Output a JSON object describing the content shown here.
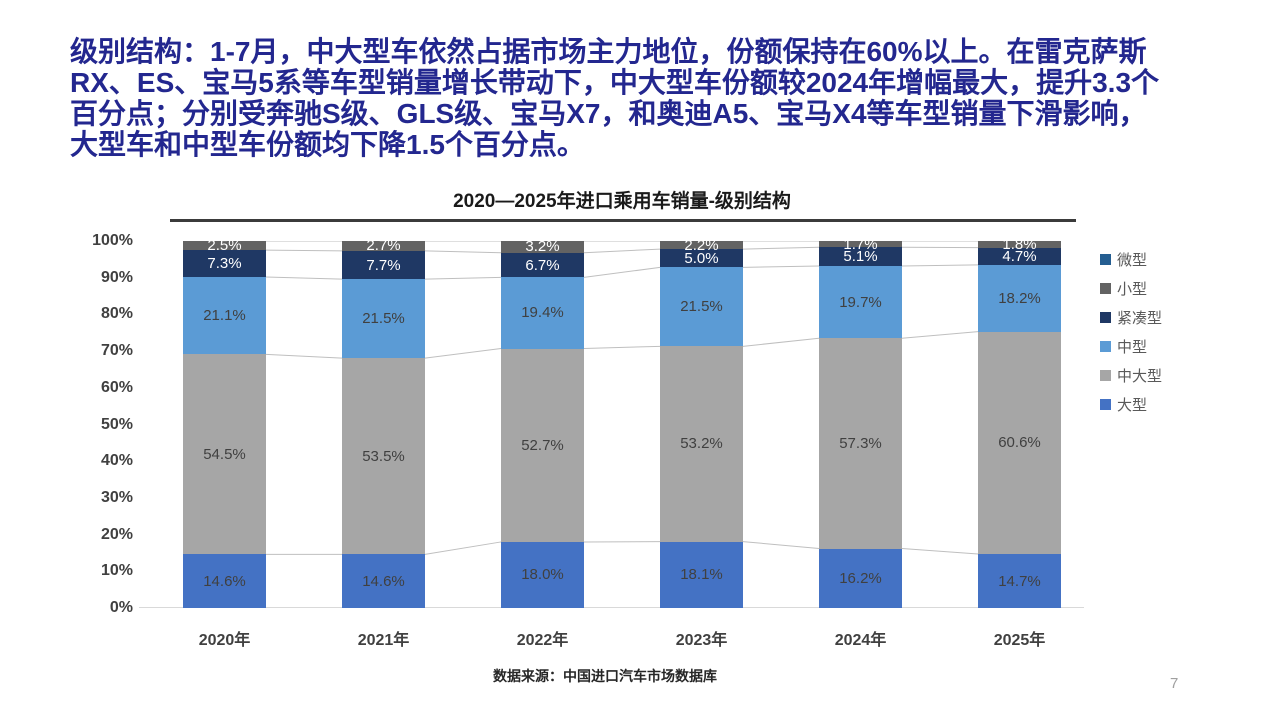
{
  "header": {
    "lines": [
      "级别结构：1-7月，中大型车依然占据市场主力地位，份额保持在60%以上。在雷克萨斯",
      "RX、ES、宝马5系等车型销量增长带动下，中大型车份额较2024年增幅最大，提升3.3个",
      "百分点；分别受奔驰S级、GLS级、宝马X7，和奥迪A5、宝马X4等车型销量下滑影响，",
      "大型车和中型车份额均下降1.5个百分点。"
    ],
    "text_color": "#23278F"
  },
  "chart_data": {
    "type": "bar",
    "stacking": "percent-100",
    "title": "2020—2025年进口乘用车销量-级别结构",
    "categories": [
      "2020年",
      "2021年",
      "2022年",
      "2023年",
      "2024年",
      "2025年"
    ],
    "series": [
      {
        "name": "大型",
        "color": "#4472C4",
        "label_color": "#404040",
        "values": [
          14.6,
          14.6,
          18.0,
          18.1,
          16.2,
          14.7
        ]
      },
      {
        "name": "中大型",
        "color": "#A6A6A6",
        "label_color": "#404040",
        "values": [
          54.5,
          53.5,
          52.7,
          53.2,
          57.3,
          60.6
        ]
      },
      {
        "name": "中型",
        "color": "#5B9BD5",
        "label_color": "#404040",
        "values": [
          21.1,
          21.5,
          19.4,
          21.5,
          19.7,
          18.2
        ]
      },
      {
        "name": "紧凑型",
        "color": "#1F3864",
        "label_color": "#FFFFFF",
        "values": [
          7.3,
          7.7,
          6.7,
          5.0,
          5.1,
          4.7
        ]
      },
      {
        "name": "小型",
        "color": "#636363",
        "label_color": "#FFFFFF",
        "values": [
          2.5,
          2.7,
          3.2,
          2.2,
          1.7,
          1.8
        ]
      },
      {
        "name": "微型",
        "color": "#255E91",
        "label_color": "#FFFFFF",
        "values": [
          0,
          0,
          0,
          0,
          0,
          0
        ]
      }
    ],
    "legend": [
      {
        "label": "微型",
        "color": "#255E91"
      },
      {
        "label": "小型",
        "color": "#636363"
      },
      {
        "label": "紧凑型",
        "color": "#1F3864"
      },
      {
        "label": "中型",
        "color": "#5B9BD5"
      },
      {
        "label": "中大型",
        "color": "#A6A6A6"
      },
      {
        "label": "大型",
        "color": "#4472C4"
      }
    ],
    "legend_position": "right",
    "y_ticks": [
      "100%",
      "90%",
      "80%",
      "70%",
      "60%",
      "50%",
      "40%",
      "30%",
      "20%",
      "10%",
      "0%"
    ],
    "ylim": [
      0,
      100
    ],
    "xlabel": "",
    "ylabel": "",
    "grid": false,
    "connector_line_color": "#BFBFBF",
    "axis_text_color": "#404040"
  },
  "footer": {
    "source": "数据来源：中国进口汽车市场数据库",
    "page_number": "7"
  }
}
